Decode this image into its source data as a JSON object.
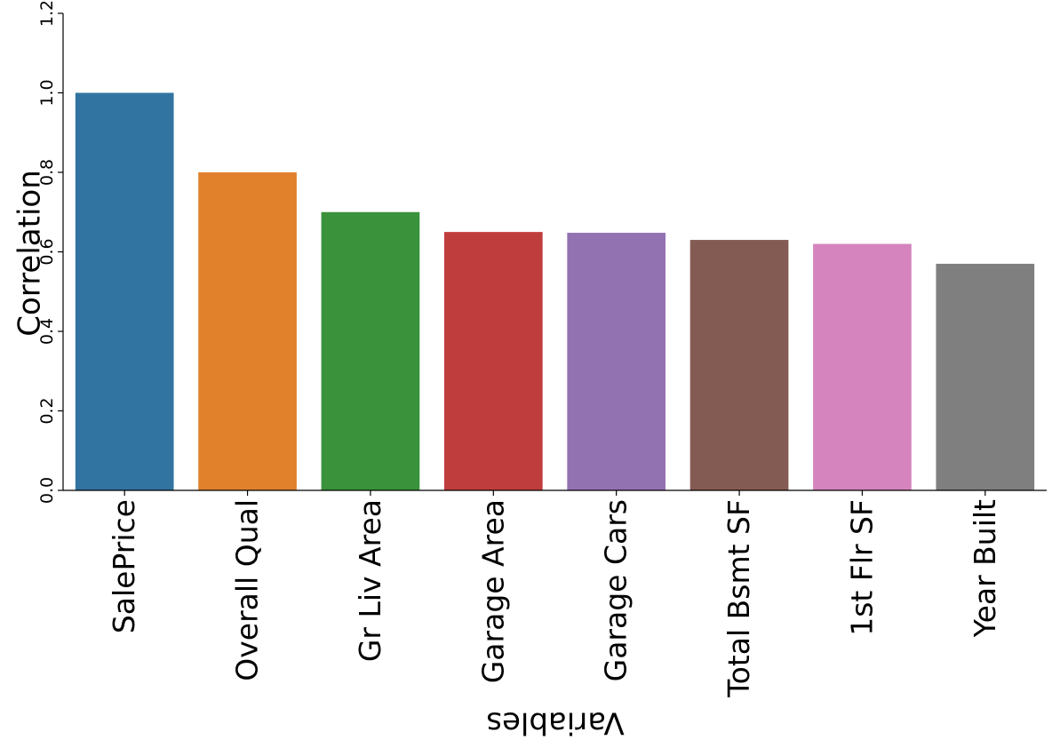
{
  "chart_data": {
    "type": "bar",
    "categories": [
      "SalePrice",
      "Overall Qual",
      "Gr Liv Area",
      "Garage Area",
      "Garage Cars",
      "Total Bsmt SF",
      "1st Flr SF",
      "Year Built"
    ],
    "values": [
      1.0,
      0.8,
      0.7,
      0.65,
      0.648,
      0.63,
      0.62,
      0.57
    ],
    "colors": [
      "#3274a1",
      "#e1812c",
      "#3a923a",
      "#c03d3e",
      "#9372b2",
      "#845b53",
      "#d684bd",
      "#7f7f7f"
    ],
    "title": "",
    "xlabel": "Variables",
    "ylabel": "Correlation",
    "ylim": [
      0,
      1.2
    ],
    "yticks": [
      "0.0",
      "0.2",
      "0.4",
      "0.6",
      "0.8",
      "1.0",
      "1.2"
    ],
    "grid": false,
    "legend": "none"
  }
}
